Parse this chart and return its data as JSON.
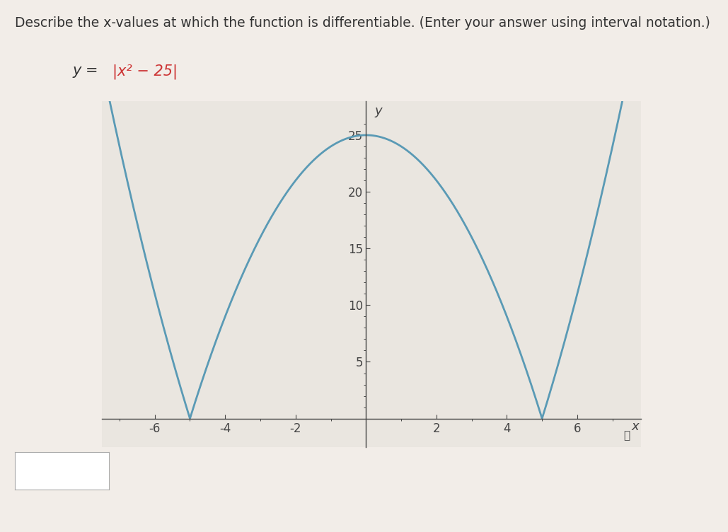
{
  "title_text": "Describe the x-values at which the function is differentiable. (Enter your answer using interval notation.)",
  "equation_y_part": "y = ",
  "equation_math_part": "|x² − 25|",
  "x_label": "x",
  "y_label": "y",
  "x_ticks": [
    -6,
    -4,
    -2,
    2,
    4,
    6
  ],
  "y_ticks": [
    5,
    10,
    15,
    20,
    25
  ],
  "x_range": [
    -7.5,
    7.8
  ],
  "y_range": [
    -2.5,
    28
  ],
  "plot_x_min": -7.5,
  "plot_x_max": 7.5,
  "line_color": "#5a9ab5",
  "line_width": 2.0,
  "page_bg": "#f2ede8",
  "plot_bg": "#eae6e0",
  "axes_color": "#444444",
  "tick_color": "#444444",
  "title_fontsize": 13.5,
  "equation_fontsize": 15,
  "axis_label_fontsize": 13,
  "tick_fontsize": 12,
  "eq_color_normal": "#333333",
  "eq_color_red": "#cc3333"
}
